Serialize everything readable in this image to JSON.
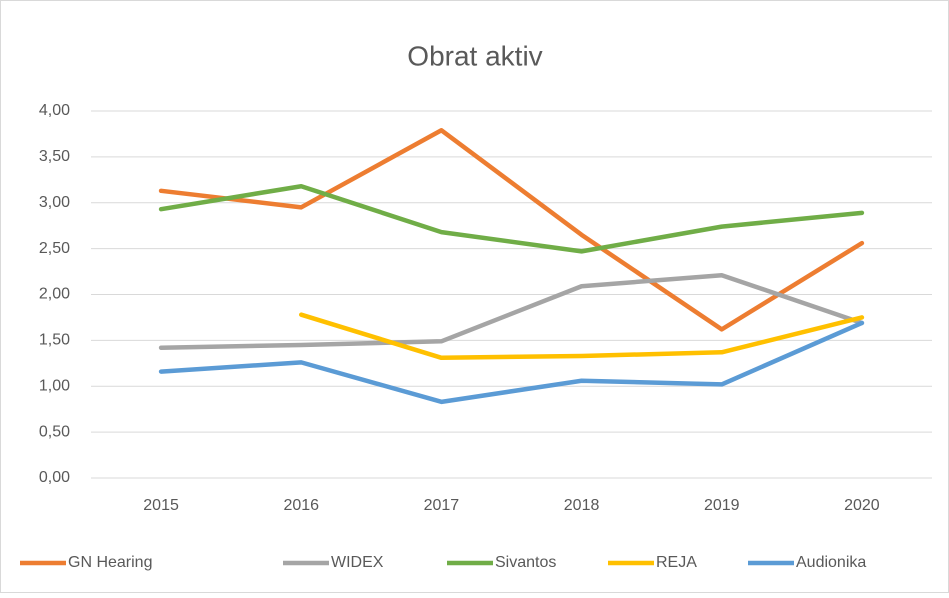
{
  "chart_data": {
    "type": "line",
    "title": "Obrat aktiv",
    "categories": [
      "2015",
      "2016",
      "2017",
      "2018",
      "2019",
      "2020"
    ],
    "series": [
      {
        "name": "GN Hearing",
        "color": "#ed7d31",
        "values": [
          3.13,
          2.95,
          3.79,
          2.65,
          1.62,
          2.56
        ]
      },
      {
        "name": "WIDEX",
        "color": "#a5a5a5",
        "values": [
          1.42,
          1.45,
          1.49,
          2.09,
          2.21,
          1.69
        ]
      },
      {
        "name": "Sivantos",
        "color": "#70ad47",
        "values": [
          2.93,
          3.18,
          2.68,
          2.47,
          2.74,
          2.89
        ]
      },
      {
        "name": "REJA",
        "color": "#ffc000",
        "values": [
          null,
          1.78,
          1.31,
          1.33,
          1.37,
          1.75
        ]
      },
      {
        "name": "Audionika",
        "color": "#5b9bd5",
        "values": [
          1.16,
          1.26,
          0.83,
          1.06,
          1.02,
          1.69
        ]
      }
    ],
    "ylim": [
      0,
      4
    ],
    "yticks": [
      {
        "value": 0,
        "label": "0,00"
      },
      {
        "value": 0.5,
        "label": "0,50"
      },
      {
        "value": 1,
        "label": "1,00"
      },
      {
        "value": 1.5,
        "label": "1,50"
      },
      {
        "value": 2,
        "label": "2,00"
      },
      {
        "value": 2.5,
        "label": "2,50"
      },
      {
        "value": 3,
        "label": "3,00"
      },
      {
        "value": 3.5,
        "label": "3,50"
      },
      {
        "value": 4,
        "label": "4,00"
      }
    ],
    "grid": true,
    "legend": "bottom"
  }
}
